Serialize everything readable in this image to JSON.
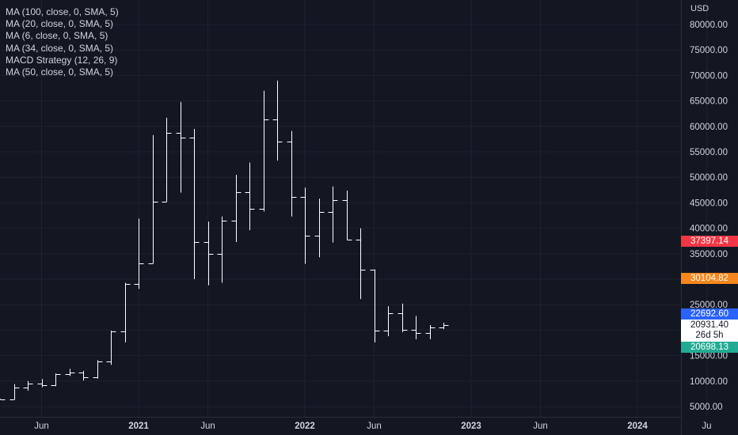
{
  "legend": {
    "items": [
      "MA (100, close, 0, SMA, 5)",
      "MA (20, close, 0, SMA, 5)",
      "MA (6, close, 0, SMA, 5)",
      "MA (34, close, 0, SMA, 5)",
      "MACD Strategy (12, 26, 9)",
      "MA (50, close, 0, SMA, 5)"
    ]
  },
  "price_axis": {
    "currency": "USD"
  },
  "price_tags": {
    "red": "37397.14",
    "orange": "30104.82",
    "blue": "22692.60",
    "last_price": "20931.40",
    "countdown": "26d 5h",
    "teal": "20698.13"
  },
  "colors": {
    "background": "#131722",
    "bars": "#ffffff",
    "grid": "#1e222d",
    "red": "#f23645",
    "orange": "#f7861d",
    "blue": "#2962ff",
    "teal": "#22ab94"
  },
  "chart_data": {
    "type": "ohlc",
    "interval": "monthly",
    "ylim": [
      4000,
      83000
    ],
    "y_ticks": [
      5000,
      10000,
      15000,
      20000,
      25000,
      30000,
      35000,
      40000,
      45000,
      50000,
      55000,
      60000,
      65000,
      70000,
      75000,
      80000
    ],
    "y_tick_labels": [
      "5000.00",
      "10000.00",
      "15000.00",
      "20000.00",
      "25000.00",
      "30000.00",
      "35000.00",
      "40000.00",
      "45000.00",
      "50000.00",
      "55000.00",
      "60000.00",
      "65000.00",
      "70000.00",
      "75000.00",
      "80000.00"
    ],
    "x_ticks": [
      "Jun",
      "2021",
      "Jun",
      "2022",
      "Jun",
      "2023",
      "Jun",
      "2024",
      "Ju"
    ],
    "x_tick_months": [
      "2020-06",
      "2021-01",
      "2021-06",
      "2022-01",
      "2022-06",
      "2023-01",
      "2023-06",
      "2024-01",
      "2024-06"
    ],
    "x_range": [
      "2020-03",
      "2024-06"
    ],
    "grid": true,
    "bars": [
      {
        "date": "2020-03",
        "open": 6500,
        "high": 6500,
        "low": 6400,
        "close": 6450
      },
      {
        "date": "2020-04",
        "open": 6450,
        "high": 9400,
        "low": 6400,
        "close": 8650
      },
      {
        "date": "2020-05",
        "open": 8650,
        "high": 10000,
        "low": 8100,
        "close": 9450
      },
      {
        "date": "2020-06",
        "open": 9450,
        "high": 10400,
        "low": 8800,
        "close": 9150
      },
      {
        "date": "2020-07",
        "open": 9150,
        "high": 11500,
        "low": 9000,
        "close": 11350
      },
      {
        "date": "2020-08",
        "open": 11350,
        "high": 12400,
        "low": 11000,
        "close": 11650
      },
      {
        "date": "2020-09",
        "open": 11650,
        "high": 12000,
        "low": 10100,
        "close": 10800
      },
      {
        "date": "2020-10",
        "open": 10800,
        "high": 14100,
        "low": 10500,
        "close": 13800
      },
      {
        "date": "2020-11",
        "open": 13800,
        "high": 19900,
        "low": 13200,
        "close": 19700
      },
      {
        "date": "2020-12",
        "open": 19700,
        "high": 29300,
        "low": 17600,
        "close": 29000
      },
      {
        "date": "2021-01",
        "open": 29000,
        "high": 41900,
        "low": 28100,
        "close": 33100
      },
      {
        "date": "2021-02",
        "open": 33100,
        "high": 58300,
        "low": 33100,
        "close": 45200
      },
      {
        "date": "2021-03",
        "open": 45200,
        "high": 61700,
        "low": 45200,
        "close": 58800
      },
      {
        "date": "2021-04",
        "open": 58800,
        "high": 64800,
        "low": 47000,
        "close": 57800
      },
      {
        "date": "2021-05",
        "open": 57800,
        "high": 59500,
        "low": 30000,
        "close": 37300
      },
      {
        "date": "2021-06",
        "open": 37300,
        "high": 41300,
        "low": 28800,
        "close": 35000
      },
      {
        "date": "2021-07",
        "open": 35000,
        "high": 42300,
        "low": 29300,
        "close": 41500
      },
      {
        "date": "2021-08",
        "open": 41500,
        "high": 50500,
        "low": 37300,
        "close": 47100
      },
      {
        "date": "2021-09",
        "open": 47100,
        "high": 52900,
        "low": 39600,
        "close": 43800
      },
      {
        "date": "2021-10",
        "open": 43800,
        "high": 67000,
        "low": 43300,
        "close": 61300
      },
      {
        "date": "2021-11",
        "open": 61300,
        "high": 69000,
        "low": 53300,
        "close": 57000
      },
      {
        "date": "2021-12",
        "open": 57000,
        "high": 59100,
        "low": 42300,
        "close": 46200
      },
      {
        "date": "2022-01",
        "open": 46200,
        "high": 48000,
        "low": 33000,
        "close": 38500
      },
      {
        "date": "2022-02",
        "open": 38500,
        "high": 45800,
        "low": 34300,
        "close": 43200
      },
      {
        "date": "2022-03",
        "open": 43200,
        "high": 48200,
        "low": 37200,
        "close": 45500
      },
      {
        "date": "2022-04",
        "open": 45500,
        "high": 47400,
        "low": 37700,
        "close": 37700
      },
      {
        "date": "2022-05",
        "open": 37700,
        "high": 40000,
        "low": 26100,
        "close": 31800
      },
      {
        "date": "2022-06",
        "open": 31800,
        "high": 31900,
        "low": 17600,
        "close": 19900
      },
      {
        "date": "2022-07",
        "open": 19900,
        "high": 24700,
        "low": 18800,
        "close": 23300
      },
      {
        "date": "2022-08",
        "open": 23300,
        "high": 25200,
        "low": 19600,
        "close": 20100
      },
      {
        "date": "2022-09",
        "open": 20100,
        "high": 22800,
        "low": 18200,
        "close": 19400
      },
      {
        "date": "2022-10",
        "open": 19400,
        "high": 21000,
        "low": 18200,
        "close": 20500
      },
      {
        "date": "2022-11",
        "open": 20500,
        "high": 21450,
        "low": 20200,
        "close": 20931.4
      }
    ]
  }
}
